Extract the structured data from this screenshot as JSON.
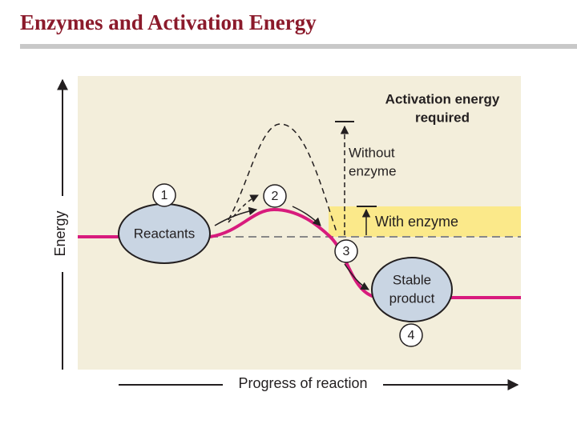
{
  "header": {
    "title": "Enzymes and Activation Energy"
  },
  "diagram": {
    "y_axis_label": "Energy",
    "x_axis_label": "Progress of reaction",
    "activation_energy_label": [
      "Activation energy",
      "required"
    ],
    "without_enzyme_label": [
      "Without",
      "enzyme"
    ],
    "with_enzyme_label": "With enzyme",
    "reactants_label": "Reactants",
    "product_label": [
      "Stable",
      "product"
    ],
    "steps": [
      "1",
      "2",
      "3",
      "4"
    ]
  }
}
